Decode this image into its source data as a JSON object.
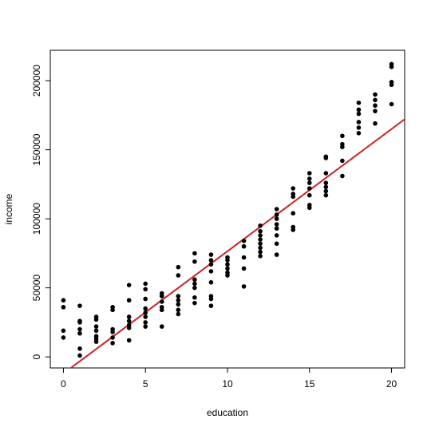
{
  "chart_data": {
    "type": "scatter",
    "xlabel": "education",
    "ylabel": "income",
    "xlim": [
      -0.8,
      20.8
    ],
    "ylim": [
      -8000,
      222000
    ],
    "x_ticks": [
      0,
      5,
      10,
      15,
      20
    ],
    "y_ticks": [
      0,
      50000,
      100000,
      150000,
      200000
    ],
    "x_tick_labels": [
      "0",
      "5",
      "10",
      "15",
      "20"
    ],
    "y_tick_labels": [
      "0",
      "50000",
      "100000",
      "150000",
      "200000"
    ],
    "grid": false,
    "legend": "none",
    "point_color": "#000000",
    "fit_line_color": "#cc2222",
    "fit_line": {
      "slope": 8850,
      "intercept": -12000
    },
    "points": [
      [
        0,
        41000
      ],
      [
        0,
        36000
      ],
      [
        0,
        19000
      ],
      [
        0,
        14000
      ],
      [
        1,
        37000
      ],
      [
        1,
        26000
      ],
      [
        1,
        25000
      ],
      [
        1,
        20000
      ],
      [
        1,
        17000
      ],
      [
        1,
        6000
      ],
      [
        1,
        1000
      ],
      [
        2,
        29000
      ],
      [
        2,
        27000
      ],
      [
        2,
        22000
      ],
      [
        2,
        19000
      ],
      [
        2,
        15000
      ],
      [
        2,
        13000
      ],
      [
        2,
        11000
      ],
      [
        3,
        36000
      ],
      [
        3,
        34000
      ],
      [
        3,
        20000
      ],
      [
        3,
        18000
      ],
      [
        3,
        14000
      ],
      [
        3,
        10000
      ],
      [
        4,
        52000
      ],
      [
        4,
        41000
      ],
      [
        4,
        29000
      ],
      [
        4,
        26000
      ],
      [
        4,
        23000
      ],
      [
        4,
        21000
      ],
      [
        4,
        12000
      ],
      [
        5,
        53000
      ],
      [
        5,
        49000
      ],
      [
        5,
        42000
      ],
      [
        5,
        35000
      ],
      [
        5,
        32000
      ],
      [
        5,
        29000
      ],
      [
        5,
        25000
      ],
      [
        5,
        22000
      ],
      [
        6,
        46000
      ],
      [
        6,
        44000
      ],
      [
        6,
        40000
      ],
      [
        6,
        36000
      ],
      [
        6,
        34000
      ],
      [
        6,
        22000
      ],
      [
        7,
        65000
      ],
      [
        7,
        59000
      ],
      [
        7,
        44000
      ],
      [
        7,
        41000
      ],
      [
        7,
        38000
      ],
      [
        7,
        34000
      ],
      [
        7,
        31000
      ],
      [
        8,
        75000
      ],
      [
        8,
        69000
      ],
      [
        8,
        56000
      ],
      [
        8,
        53000
      ],
      [
        8,
        50000
      ],
      [
        8,
        43000
      ],
      [
        8,
        39000
      ],
      [
        9,
        74000
      ],
      [
        9,
        70000
      ],
      [
        9,
        67000
      ],
      [
        9,
        62000
      ],
      [
        9,
        54000
      ],
      [
        9,
        44000
      ],
      [
        9,
        42000
      ],
      [
        9,
        37000
      ],
      [
        10,
        72000
      ],
      [
        10,
        70000
      ],
      [
        10,
        67000
      ],
      [
        10,
        64000
      ],
      [
        10,
        61000
      ],
      [
        10,
        59000
      ],
      [
        11,
        84000
      ],
      [
        11,
        80000
      ],
      [
        11,
        72000
      ],
      [
        11,
        64000
      ],
      [
        11,
        51000
      ],
      [
        12,
        95000
      ],
      [
        12,
        91000
      ],
      [
        12,
        88000
      ],
      [
        12,
        85000
      ],
      [
        12,
        82000
      ],
      [
        12,
        79000
      ],
      [
        12,
        76000
      ],
      [
        12,
        73000
      ],
      [
        13,
        107000
      ],
      [
        13,
        103000
      ],
      [
        13,
        100000
      ],
      [
        13,
        96000
      ],
      [
        13,
        93000
      ],
      [
        13,
        88000
      ],
      [
        13,
        82000
      ],
      [
        13,
        74000
      ],
      [
        14,
        122000
      ],
      [
        14,
        118000
      ],
      [
        14,
        116000
      ],
      [
        14,
        104000
      ],
      [
        14,
        94000
      ],
      [
        14,
        92000
      ],
      [
        15,
        133000
      ],
      [
        15,
        129000
      ],
      [
        15,
        126000
      ],
      [
        15,
        122000
      ],
      [
        15,
        117000
      ],
      [
        15,
        110000
      ],
      [
        15,
        108000
      ],
      [
        16,
        145000
      ],
      [
        16,
        144000
      ],
      [
        16,
        133000
      ],
      [
        16,
        126000
      ],
      [
        16,
        123000
      ],
      [
        16,
        120000
      ],
      [
        16,
        117000
      ],
      [
        17,
        160000
      ],
      [
        17,
        154000
      ],
      [
        17,
        152000
      ],
      [
        17,
        142000
      ],
      [
        17,
        131000
      ],
      [
        18,
        184000
      ],
      [
        18,
        179000
      ],
      [
        18,
        176000
      ],
      [
        18,
        170000
      ],
      [
        18,
        166000
      ],
      [
        18,
        162000
      ],
      [
        19,
        190000
      ],
      [
        19,
        186000
      ],
      [
        19,
        182000
      ],
      [
        19,
        178000
      ],
      [
        19,
        169000
      ],
      [
        20,
        212000
      ],
      [
        20,
        210000
      ],
      [
        20,
        199000
      ],
      [
        20,
        197000
      ],
      [
        20,
        183000
      ]
    ]
  }
}
